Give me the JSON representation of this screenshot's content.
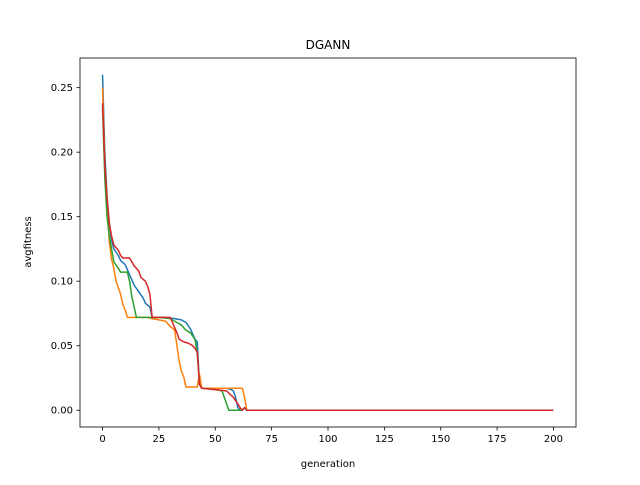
{
  "chart_data": {
    "type": "line",
    "title": "DGANN",
    "xlabel": "generation",
    "ylabel": "avgfitness",
    "xlim": [
      -10,
      210
    ],
    "ylim": [
      -0.013,
      0.273
    ],
    "xticks": [
      0,
      25,
      50,
      75,
      100,
      125,
      150,
      175,
      200
    ],
    "yticks": [
      0.0,
      0.05,
      0.1,
      0.15,
      0.2,
      0.25
    ],
    "ytick_labels": [
      "0.00",
      "0.05",
      "0.10",
      "0.15",
      "0.20",
      "0.25"
    ],
    "grid": false,
    "series": [
      {
        "color": "#1f77b4",
        "points": [
          [
            0,
            0.26
          ],
          [
            1,
            0.2
          ],
          [
            2,
            0.165
          ],
          [
            3,
            0.145
          ],
          [
            4,
            0.132
          ],
          [
            5,
            0.125
          ],
          [
            7,
            0.12
          ],
          [
            8,
            0.116
          ],
          [
            10,
            0.113
          ],
          [
            12,
            0.105
          ],
          [
            14,
            0.097
          ],
          [
            16,
            0.092
          ],
          [
            18,
            0.087
          ],
          [
            19,
            0.083
          ],
          [
            21,
            0.08
          ],
          [
            22,
            0.072
          ],
          [
            25,
            0.072
          ],
          [
            28,
            0.072
          ],
          [
            32,
            0.071
          ],
          [
            35,
            0.07
          ],
          [
            37,
            0.068
          ],
          [
            39,
            0.063
          ],
          [
            41,
            0.055
          ],
          [
            42,
            0.053
          ],
          [
            43,
            0.02
          ],
          [
            44,
            0.017
          ],
          [
            48,
            0.017
          ],
          [
            55,
            0.017
          ],
          [
            57,
            0.016
          ],
          [
            58,
            0.015
          ],
          [
            59,
            0.01
          ],
          [
            60,
            0.002
          ],
          [
            61,
            0.0
          ],
          [
            62,
            0.0
          ],
          [
            63,
            0.002
          ],
          [
            64,
            0.0
          ],
          [
            100,
            0.0
          ],
          [
            150,
            0.0
          ],
          [
            200,
            0.0
          ]
        ]
      },
      {
        "color": "#ff7f0e",
        "points": [
          [
            0,
            0.25
          ],
          [
            1,
            0.19
          ],
          [
            2,
            0.16
          ],
          [
            3,
            0.13
          ],
          [
            4,
            0.117
          ],
          [
            5,
            0.11
          ],
          [
            6,
            0.1
          ],
          [
            8,
            0.09
          ],
          [
            9,
            0.082
          ],
          [
            10,
            0.078
          ],
          [
            11,
            0.072
          ],
          [
            15,
            0.072
          ],
          [
            20,
            0.072
          ],
          [
            22,
            0.071
          ],
          [
            25,
            0.07
          ],
          [
            28,
            0.069
          ],
          [
            30,
            0.065
          ],
          [
            32,
            0.062
          ],
          [
            33,
            0.05
          ],
          [
            34,
            0.038
          ],
          [
            35,
            0.03
          ],
          [
            36,
            0.026
          ],
          [
            37,
            0.018
          ],
          [
            40,
            0.018
          ],
          [
            42,
            0.018
          ],
          [
            43,
            0.028
          ],
          [
            44,
            0.017
          ],
          [
            48,
            0.017
          ],
          [
            55,
            0.017
          ],
          [
            62,
            0.017
          ],
          [
            63,
            0.01
          ],
          [
            64,
            0.0
          ],
          [
            100,
            0.0
          ],
          [
            150,
            0.0
          ],
          [
            200,
            0.0
          ]
        ]
      },
      {
        "color": "#2ca02c",
        "points": [
          [
            0,
            0.235
          ],
          [
            1,
            0.18
          ],
          [
            2,
            0.15
          ],
          [
            3,
            0.135
          ],
          [
            4,
            0.125
          ],
          [
            5,
            0.115
          ],
          [
            7,
            0.11
          ],
          [
            8,
            0.107
          ],
          [
            11,
            0.107
          ],
          [
            12,
            0.1
          ],
          [
            13,
            0.088
          ],
          [
            14,
            0.08
          ],
          [
            15,
            0.072
          ],
          [
            20,
            0.072
          ],
          [
            25,
            0.072
          ],
          [
            30,
            0.071
          ],
          [
            33,
            0.068
          ],
          [
            35,
            0.066
          ],
          [
            37,
            0.062
          ],
          [
            39,
            0.06
          ],
          [
            41,
            0.055
          ],
          [
            42,
            0.045
          ],
          [
            43,
            0.02
          ],
          [
            44,
            0.017
          ],
          [
            50,
            0.016
          ],
          [
            53,
            0.015
          ],
          [
            54,
            0.01
          ],
          [
            55,
            0.005
          ],
          [
            56,
            0.0
          ],
          [
            60,
            0.0
          ],
          [
            62,
            0.0
          ],
          [
            63,
            0.002
          ],
          [
            64,
            0.0
          ],
          [
            100,
            0.0
          ],
          [
            150,
            0.0
          ],
          [
            200,
            0.0
          ]
        ]
      },
      {
        "color": "#d62728",
        "points": [
          [
            0,
            0.238
          ],
          [
            1,
            0.19
          ],
          [
            2,
            0.165
          ],
          [
            3,
            0.145
          ],
          [
            4,
            0.135
          ],
          [
            5,
            0.128
          ],
          [
            6,
            0.126
          ],
          [
            7,
            0.124
          ],
          [
            8,
            0.12
          ],
          [
            9,
            0.118
          ],
          [
            12,
            0.118
          ],
          [
            13,
            0.115
          ],
          [
            14,
            0.112
          ],
          [
            16,
            0.108
          ],
          [
            17,
            0.103
          ],
          [
            19,
            0.1
          ],
          [
            20,
            0.096
          ],
          [
            21,
            0.09
          ],
          [
            22,
            0.072
          ],
          [
            25,
            0.072
          ],
          [
            30,
            0.072
          ],
          [
            31,
            0.068
          ],
          [
            32,
            0.064
          ],
          [
            33,
            0.06
          ],
          [
            34,
            0.055
          ],
          [
            36,
            0.053
          ],
          [
            38,
            0.052
          ],
          [
            40,
            0.05
          ],
          [
            41,
            0.048
          ],
          [
            42,
            0.045
          ],
          [
            43,
            0.02
          ],
          [
            44,
            0.017
          ],
          [
            50,
            0.016
          ],
          [
            55,
            0.015
          ],
          [
            58,
            0.01
          ],
          [
            60,
            0.005
          ],
          [
            61,
            0.002
          ],
          [
            62,
            0.0
          ],
          [
            63,
            0.002
          ],
          [
            64,
            0.0
          ],
          [
            100,
            0.0
          ],
          [
            150,
            0.0
          ],
          [
            200,
            0.0
          ]
        ]
      }
    ]
  }
}
